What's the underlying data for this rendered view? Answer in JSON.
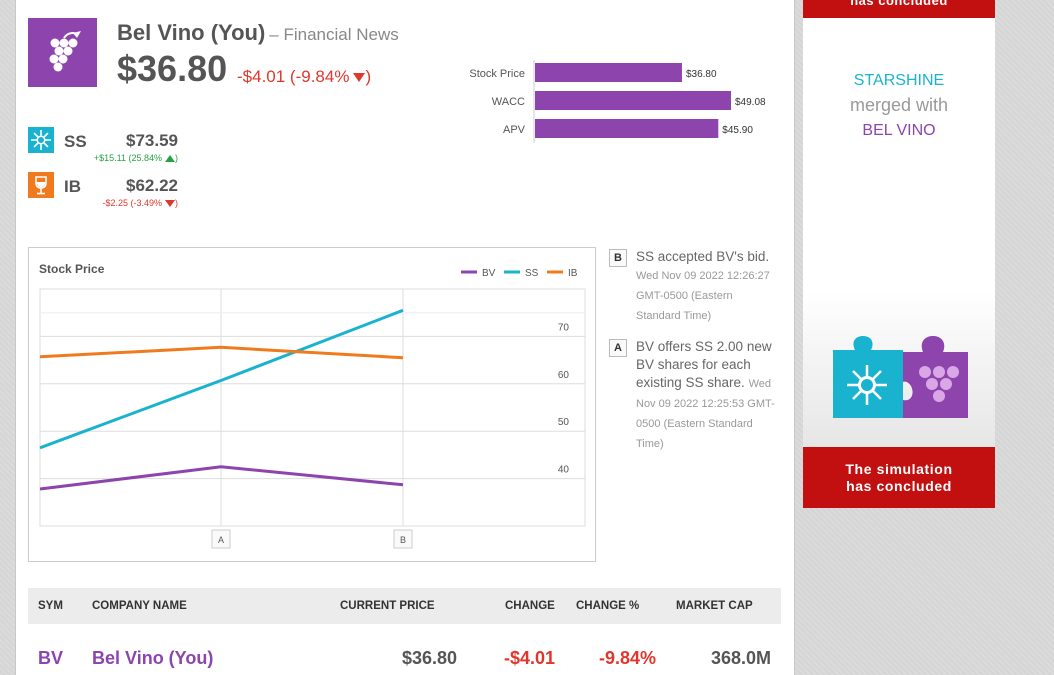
{
  "header": {
    "company": "Bel Vino (You)",
    "subtitle": "– Financial News",
    "price": "$36.80",
    "change": "-$4.01 (-9.84%"
  },
  "peers": [
    {
      "sym": "SS",
      "price": "$73.59",
      "change": "+$15.11 (25.84%",
      "close": ")"
    },
    {
      "sym": "IB",
      "price": "$62.22",
      "change": "-$2.25 (-3.49%",
      "close": ")"
    }
  ],
  "colors": {
    "bv": "#8e44ad",
    "ss": "#1ab3cf",
    "ib": "#f07a1e",
    "red": "#e0372c",
    "green": "#27a243"
  },
  "chart_data": [
    {
      "type": "bar",
      "categories": [
        "Stock Price",
        "WACC",
        "APV"
      ],
      "values": [
        36.8,
        49.08,
        45.9
      ],
      "value_labels": [
        "$36.80",
        "$49.08",
        "$45.90"
      ],
      "xlim": [
        0,
        55
      ]
    },
    {
      "type": "line",
      "title": "Stock Price",
      "x": [
        "",
        "A",
        "B"
      ],
      "series": [
        {
          "name": "BV",
          "values": [
            37.8,
            42.5,
            38.7
          ]
        },
        {
          "name": "SS",
          "values": [
            46.5,
            60.7,
            75.5
          ]
        },
        {
          "name": "IB",
          "values": [
            65.7,
            67.7,
            65.5
          ]
        }
      ],
      "yticks": [
        "70",
        "60",
        "50",
        "40"
      ],
      "ylim": [
        30,
        80
      ]
    }
  ],
  "events": [
    {
      "tag": "B",
      "text": "SS accepted BV's bid.",
      "time": "Wed Nov 09 2022 12:26:27 GMT-0500 (Eastern Standard Time)"
    },
    {
      "tag": "A",
      "text": "BV offers SS 2.00 new BV shares for each existing SS share.",
      "time": "Wed Nov 09 2022 12:25:53 GMT-0500 (Eastern Standard Time)"
    }
  ],
  "table": {
    "headers": [
      "SYM",
      "COMPANY NAME",
      "CURRENT PRICE",
      "CHANGE",
      "CHANGE %",
      "MARKET CAP"
    ],
    "row": {
      "sym": "BV",
      "name": "Bel Vino (You)",
      "price": "$36.80",
      "change": "-$4.01",
      "change_pct": "-9.84%",
      "mcap": "368.0M"
    }
  },
  "ad": {
    "top_banner": "has concluded",
    "line1": "STARSHINE",
    "line2": "merged with",
    "line3": "BEL VINO",
    "bottom_line1": "The simulation",
    "bottom_line2": "has concluded"
  }
}
